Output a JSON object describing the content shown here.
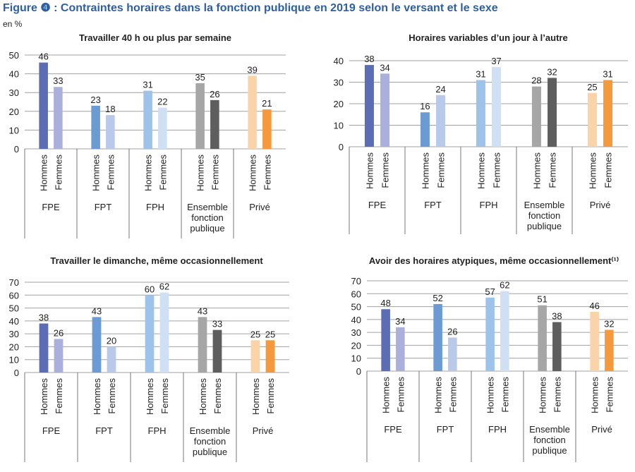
{
  "title": "Figure ❹ : Contraintes horaires dans la fonction publique en 2019 selon le versant et le sexe",
  "unit": "en %",
  "chart_data": [
    {
      "type": "bar",
      "title": "Travailler 40 h ou plus par semaine",
      "groups": [
        "FPE",
        "FPT",
        "FPH",
        "Ensemble fonction publique",
        "Privé"
      ],
      "categories": [
        "Hommes",
        "Femmes",
        "Hommes",
        "Femmes",
        "Hommes",
        "Femmes",
        "Hommes",
        "Femmes",
        "Hommes",
        "Femmes"
      ],
      "values": [
        46,
        33,
        23,
        18,
        31,
        22,
        35,
        26,
        39,
        21
      ],
      "colors": [
        "#5b6db5",
        "#aab0dc",
        "#6b9bd2",
        "#b8c9ea",
        "#9dc3ea",
        "#cfe0f5",
        "#a6a6a6",
        "#5e5e5e",
        "#fbd3a8",
        "#f4993c"
      ],
      "ylim": [
        0,
        50
      ],
      "yticks": [
        0,
        10,
        20,
        30,
        40,
        50
      ],
      "grid": true
    },
    {
      "type": "bar",
      "title": "Horaires variables d’un jour à l’autre",
      "groups": [
        "FPE",
        "FPT",
        "FPH",
        "Ensemble fonction publique",
        "Privé"
      ],
      "categories": [
        "Hommes",
        "Femmes",
        "Hommes",
        "Femmes",
        "Hommes",
        "Femmes",
        "Hommes",
        "Femmes",
        "Hommes",
        "Femmes"
      ],
      "values": [
        38,
        34,
        16,
        24,
        31,
        37,
        28,
        32,
        25,
        31
      ],
      "colors": [
        "#5b6db5",
        "#aab0dc",
        "#6b9bd2",
        "#b8c9ea",
        "#9dc3ea",
        "#cfe0f5",
        "#a6a6a6",
        "#5e5e5e",
        "#fbd3a8",
        "#f4993c"
      ],
      "ylim": [
        0,
        40
      ],
      "yticks": [
        0,
        10,
        20,
        30,
        40
      ],
      "grid": true
    },
    {
      "type": "bar",
      "title": "Travailler le dimanche, même occasionnellement",
      "groups": [
        "FPE",
        "FPT",
        "FPH",
        "Ensemble fonction publique",
        "Privé"
      ],
      "categories": [
        "Hommes",
        "Femmes",
        "Hommes",
        "Femmes",
        "Hommes",
        "Femmes",
        "Hommes",
        "Femmes",
        "Hommes",
        "Femmes"
      ],
      "values": [
        38,
        26,
        43,
        20,
        60,
        62,
        43,
        33,
        25,
        25
      ],
      "colors": [
        "#5b6db5",
        "#aab0dc",
        "#6b9bd2",
        "#b8c9ea",
        "#9dc3ea",
        "#cfe0f5",
        "#a6a6a6",
        "#5e5e5e",
        "#fbd3a8",
        "#f4993c"
      ],
      "ylim": [
        0,
        70
      ],
      "yticks": [
        0,
        10,
        20,
        30,
        40,
        50,
        60,
        70
      ],
      "grid": true
    },
    {
      "type": "bar",
      "title": "Avoir des horaires atypiques, même occasionnellement⁽¹⁾",
      "groups": [
        "FPE",
        "FPT",
        "FPH",
        "Ensemble fonction publique",
        "Privé"
      ],
      "categories": [
        "Hommes",
        "Femmes",
        "Hommes",
        "Femmes",
        "Hommes",
        "Femmes",
        "Hommes",
        "Femmes",
        "Hommes",
        "Femmes"
      ],
      "values": [
        48,
        34,
        52,
        26,
        57,
        62,
        51,
        38,
        46,
        32
      ],
      "colors": [
        "#5b6db5",
        "#aab0dc",
        "#6b9bd2",
        "#b8c9ea",
        "#9dc3ea",
        "#cfe0f5",
        "#a6a6a6",
        "#5e5e5e",
        "#fbd3a8",
        "#f4993c"
      ],
      "ylim": [
        0,
        70
      ],
      "yticks": [
        0,
        10,
        20,
        30,
        40,
        50,
        60,
        70
      ],
      "grid": true
    }
  ]
}
